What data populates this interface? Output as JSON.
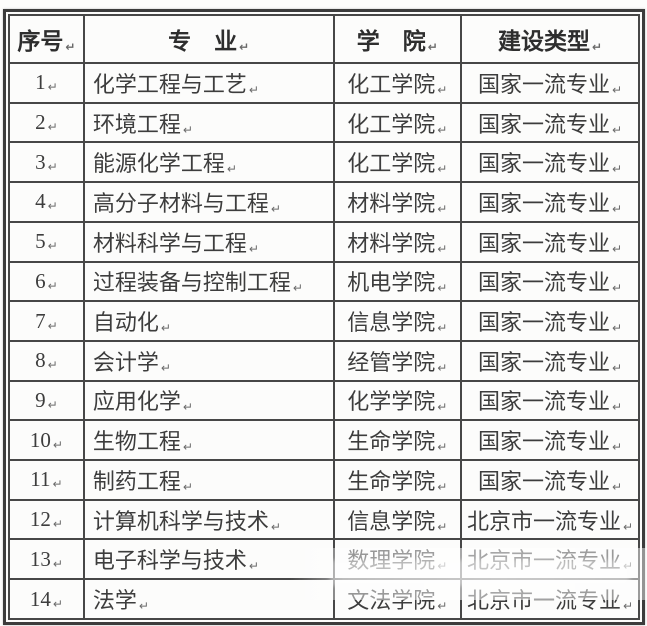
{
  "table": {
    "headers": [
      "序号",
      "专　业",
      "学　院",
      "建设类型"
    ],
    "rows": [
      [
        "1",
        "化学工程与工艺",
        "化工学院",
        "国家一流专业"
      ],
      [
        "2",
        "环境工程",
        "化工学院",
        "国家一流专业"
      ],
      [
        "3",
        "能源化学工程",
        "化工学院",
        "国家一流专业"
      ],
      [
        "4",
        "高分子材料与工程",
        "材料学院",
        "国家一流专业"
      ],
      [
        "5",
        "材料科学与工程",
        "材料学院",
        "国家一流专业"
      ],
      [
        "6",
        "过程装备与控制工程",
        "机电学院",
        "国家一流专业"
      ],
      [
        "7",
        "自动化",
        "信息学院",
        "国家一流专业"
      ],
      [
        "8",
        "会计学",
        "经管学院",
        "国家一流专业"
      ],
      [
        "9",
        "应用化学",
        "化学学院",
        "国家一流专业"
      ],
      [
        "10",
        "生物工程",
        "生命学院",
        "国家一流专业"
      ],
      [
        "11",
        "制药工程",
        "生命学院",
        "国家一流专业"
      ],
      [
        "12",
        "计算机科学与技术",
        "信息学院",
        "北京市一流专业"
      ],
      [
        "13",
        "电子科学与技术",
        "数理学院",
        "北京市一流专业"
      ],
      [
        "14",
        "法学",
        "文法学院",
        "北京市一流专业"
      ]
    ]
  },
  "marks": {
    "cell_end": "↵"
  },
  "colors": {
    "border": "#474747",
    "frame": "#3c3c3c",
    "text": "#3d3d3d",
    "background": "#fdfdfc"
  }
}
